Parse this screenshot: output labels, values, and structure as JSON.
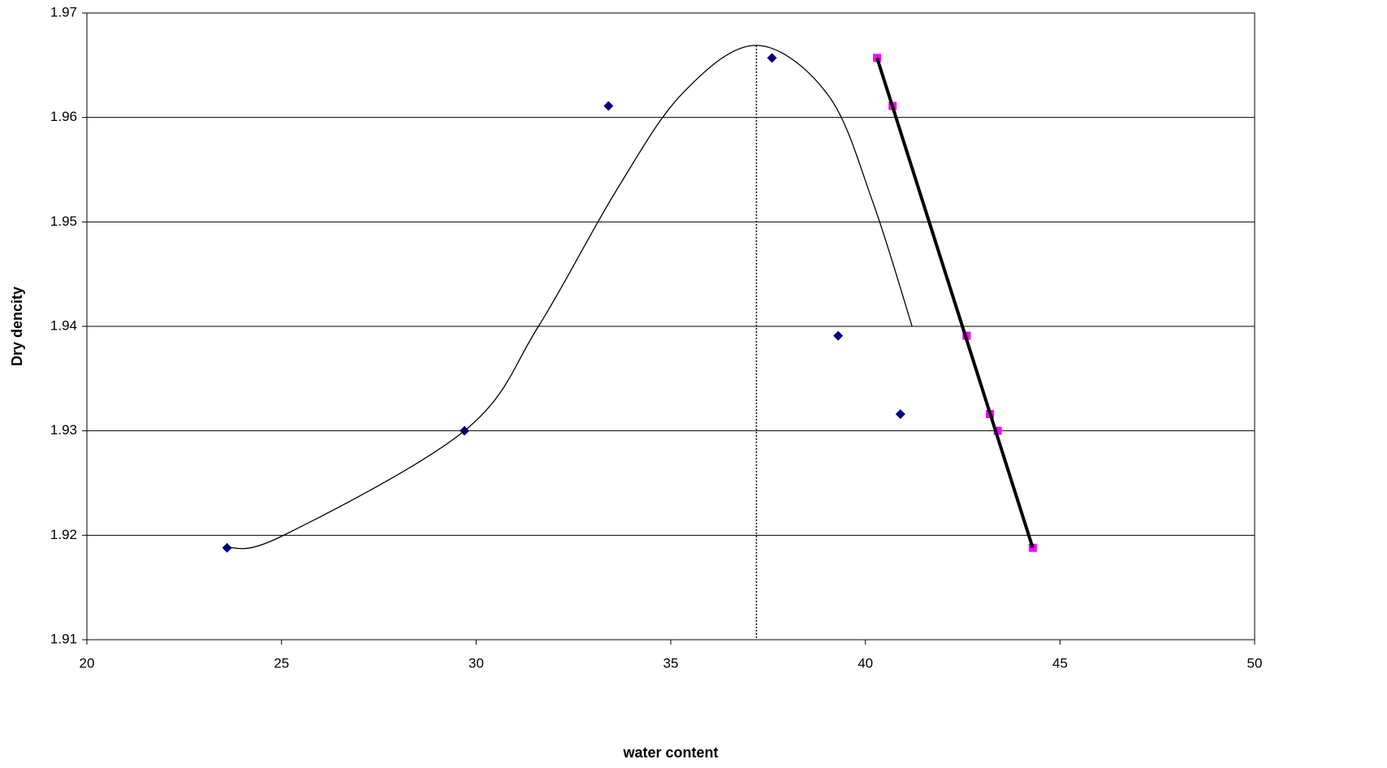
{
  "chart_data": {
    "type": "scatter",
    "xlabel": "water content",
    "ylabel": "Dry dencity",
    "xlim": [
      20,
      50
    ],
    "xticks": [
      20,
      25,
      30,
      35,
      40,
      45,
      50
    ],
    "ylim": [
      1.91,
      1.97
    ],
    "yticks": [
      1.91,
      1.92,
      1.93,
      1.94,
      1.95,
      1.96,
      1.97
    ],
    "grid": true,
    "series": [
      {
        "mode": "markers",
        "marker": "diamond",
        "color": "#000080",
        "x": [
          23.6,
          29.7,
          33.4,
          37.6,
          39.3,
          40.9
        ],
        "values": [
          1.9188,
          1.93,
          1.9611,
          1.9657,
          1.9391,
          1.9316
        ]
      },
      {
        "mode": "markers",
        "marker": "square",
        "color": "#ff00ff",
        "x": [
          40.3,
          40.7,
          42.6,
          43.2,
          43.4,
          44.3
        ],
        "values": [
          1.9657,
          1.9611,
          1.9391,
          1.9316,
          1.93,
          1.9188
        ]
      },
      {
        "mode": "line",
        "smooth": true,
        "color": "#000000",
        "width": 1.3,
        "x": [
          23.6,
          25.0,
          29.7,
          31.6,
          33.6,
          35.3,
          37.2,
          39.05,
          40.2,
          41.2
        ],
        "values": [
          1.9188,
          1.9199,
          1.93,
          1.94,
          1.953,
          1.9623,
          1.9669,
          1.9621,
          1.9518,
          1.94
        ]
      },
      {
        "mode": "line",
        "smooth": false,
        "color": "#000000",
        "width": 4,
        "x": [
          40.3,
          44.3
        ],
        "values": [
          1.9657,
          1.9188
        ]
      },
      {
        "mode": "line",
        "smooth": false,
        "dash": true,
        "color": "#000000",
        "width": 1.5,
        "x": [
          37.2,
          37.2
        ],
        "values": [
          1.9669,
          1.91
        ]
      }
    ]
  }
}
